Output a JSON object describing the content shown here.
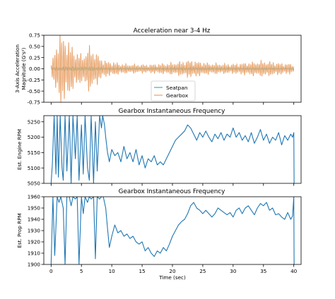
{
  "chart_data": [
    {
      "type": "line",
      "title": "Acceleration near 3-4 Hz",
      "ylabel": "3-Axis Acceleration\nMagnitude (G's²)",
      "xlim": [
        -1.2,
        41.2
      ],
      "ylim": [
        -0.75,
        0.75
      ],
      "yticks": [
        "0.75",
        "0.50",
        "0.25",
        "0.00",
        "-0.25",
        "-0.50",
        "-0.75"
      ],
      "ytick_values": [
        0.75,
        0.5,
        0.25,
        0.0,
        -0.25,
        -0.5,
        -0.75
      ],
      "legend": {
        "placement": "lower-center",
        "entries": [
          "Seatpan",
          "Gearbox"
        ]
      },
      "series": [
        {
          "name": "Seatpan",
          "color": "#3fb59f",
          "amplitude_profile": [
            [
              0,
              0.03
            ],
            [
              1,
              0.05
            ],
            [
              3,
              0.06
            ],
            [
              7,
              0.06
            ],
            [
              9,
              0.04
            ],
            [
              15,
              0.03
            ],
            [
              23,
              0.05
            ],
            [
              30,
              0.04
            ],
            [
              40,
              0.03
            ]
          ]
        },
        {
          "name": "Gearbox",
          "color": "#e8a066",
          "amplitude_profile": [
            [
              0,
              0.05
            ],
            [
              0.5,
              0.45
            ],
            [
              1.3,
              0.9
            ],
            [
              2.5,
              0.8
            ],
            [
              3.5,
              0.55
            ],
            [
              5,
              0.35
            ],
            [
              6.5,
              0.6
            ],
            [
              8,
              0.3
            ],
            [
              9,
              0.2
            ],
            [
              12,
              0.12
            ],
            [
              16,
              0.1
            ],
            [
              20,
              0.15
            ],
            [
              23,
              0.22
            ],
            [
              26,
              0.14
            ],
            [
              30,
              0.12
            ],
            [
              35,
              0.2
            ],
            [
              38,
              0.14
            ],
            [
              40,
              0.12
            ]
          ]
        }
      ]
    },
    {
      "type": "line",
      "title": "Gearbox Instantaneous Frequency",
      "ylabel": "Est. Engine RPM",
      "xlim": [
        -1.2,
        41.2
      ],
      "ylim": [
        5050,
        5270
      ],
      "yticks": [
        "5250",
        "5200",
        "5150",
        "5100",
        "5050"
      ],
      "ytick_values": [
        5250,
        5200,
        5150,
        5100,
        5050
      ],
      "series": [
        {
          "name": "",
          "color": "#1f77b4",
          "x": [
            0.0,
            0.2,
            0.5,
            0.8,
            1.0,
            1.2,
            1.5,
            1.8,
            2.0,
            2.3,
            2.6,
            3.0,
            3.3,
            3.6,
            4.0,
            4.3,
            4.6,
            5.0,
            5.3,
            5.6,
            6.0,
            6.3,
            6.6,
            7.0,
            7.3,
            7.6,
            8.0,
            8.3,
            8.5,
            8.8,
            9.0,
            9.3,
            9.6,
            10.0,
            10.5,
            11.0,
            11.5,
            12.0,
            12.5,
            13.0,
            13.5,
            14.0,
            14.5,
            15.0,
            15.5,
            16.0,
            16.5,
            17.0,
            17.5,
            18.0,
            18.5,
            19.0,
            19.5,
            20.0,
            20.5,
            21.0,
            21.5,
            22.0,
            22.5,
            23.0,
            23.5,
            24.0,
            24.5,
            25.0,
            25.5,
            26.0,
            26.5,
            27.0,
            27.5,
            28.0,
            28.5,
            29.0,
            29.5,
            30.0,
            30.5,
            31.0,
            31.5,
            32.0,
            32.5,
            33.0,
            33.5,
            34.0,
            34.5,
            35.0,
            35.5,
            36.0,
            36.5,
            37.0,
            37.5,
            38.0,
            38.5,
            39.0,
            39.5,
            39.8,
            40.0,
            40.05
          ],
          "values": [
            5050,
            5110,
            5270,
            5080,
            5270,
            5070,
            5270,
            5100,
            5060,
            5270,
            5090,
            5270,
            5050,
            5270,
            5130,
            5270,
            5060,
            5240,
            5080,
            5270,
            5100,
            5060,
            5270,
            5050,
            5250,
            5090,
            5270,
            5230,
            5270,
            5240,
            5200,
            5150,
            5120,
            5160,
            5140,
            5150,
            5120,
            5170,
            5130,
            5150,
            5120,
            5160,
            5110,
            5140,
            5100,
            5130,
            5120,
            5140,
            5110,
            5120,
            5110,
            5130,
            5150,
            5170,
            5190,
            5200,
            5210,
            5220,
            5240,
            5230,
            5210,
            5190,
            5215,
            5200,
            5220,
            5200,
            5185,
            5210,
            5195,
            5215,
            5190,
            5210,
            5200,
            5230,
            5200,
            5215,
            5190,
            5205,
            5185,
            5215,
            5180,
            5200,
            5225,
            5190,
            5210,
            5180,
            5200,
            5190,
            5215,
            5175,
            5205,
            5190,
            5210,
            5200,
            5215,
            5050
          ]
        }
      ]
    },
    {
      "type": "line",
      "title": "Gearbox Instantaneous Frequency",
      "ylabel": "Est. Prop RPM",
      "xlabel": "Time (sec)",
      "xlim": [
        -1.2,
        41.2
      ],
      "ylim": [
        1900,
        1960
      ],
      "xticks": [
        "0",
        "5",
        "10",
        "15",
        "20",
        "25",
        "30",
        "35",
        "40"
      ],
      "xtick_values": [
        0,
        5,
        10,
        15,
        20,
        25,
        30,
        35,
        40
      ],
      "yticks": [
        "1960",
        "1950",
        "1940",
        "1930",
        "1920",
        "1910",
        "1900"
      ],
      "ytick_values": [
        1960,
        1950,
        1940,
        1930,
        1920,
        1910,
        1900
      ],
      "series": [
        {
          "name": "",
          "color": "#1f77b4",
          "x": [
            0.0,
            0.3,
            0.6,
            1.0,
            1.3,
            1.6,
            2.0,
            2.3,
            2.6,
            3.0,
            3.3,
            3.6,
            4.0,
            4.3,
            4.6,
            5.0,
            5.3,
            5.6,
            6.0,
            6.3,
            6.6,
            7.0,
            7.3,
            7.6,
            8.0,
            8.3,
            8.6,
            9.0,
            9.3,
            9.6,
            10.0,
            10.5,
            11.0,
            11.5,
            12.0,
            12.5,
            13.0,
            13.5,
            14.0,
            14.5,
            15.0,
            15.5,
            16.0,
            16.5,
            17.0,
            17.5,
            18.0,
            18.5,
            19.0,
            19.5,
            20.0,
            20.5,
            21.0,
            21.5,
            22.0,
            22.5,
            23.0,
            23.5,
            24.0,
            24.5,
            25.0,
            25.5,
            26.0,
            26.5,
            27.0,
            27.5,
            28.0,
            28.5,
            29.0,
            29.5,
            30.0,
            30.5,
            31.0,
            31.5,
            32.0,
            32.5,
            33.0,
            33.5,
            34.0,
            34.5,
            35.0,
            35.5,
            36.0,
            36.5,
            37.0,
            37.5,
            38.0,
            38.5,
            39.0,
            39.5,
            39.8,
            40.0,
            40.05
          ],
          "values": [
            1900,
            1960,
            1908,
            1960,
            1955,
            1960,
            1950,
            1900,
            1960,
            1960,
            1952,
            1960,
            1958,
            1960,
            1900,
            1960,
            1945,
            1960,
            1955,
            1960,
            1958,
            1960,
            1905,
            1960,
            1958,
            1960,
            1960,
            1950,
            1932,
            1915,
            1925,
            1935,
            1928,
            1930,
            1925,
            1927,
            1923,
            1925,
            1920,
            1918,
            1920,
            1912,
            1915,
            1910,
            1907,
            1912,
            1910,
            1915,
            1912,
            1918,
            1925,
            1930,
            1935,
            1938,
            1940,
            1945,
            1952,
            1955,
            1950,
            1948,
            1945,
            1948,
            1945,
            1942,
            1945,
            1950,
            1948,
            1946,
            1944,
            1946,
            1942,
            1948,
            1950,
            1945,
            1950,
            1952,
            1948,
            1944,
            1950,
            1954,
            1952,
            1955,
            1948,
            1950,
            1944,
            1945,
            1942,
            1940,
            1946,
            1940,
            1943,
            1960,
            1900
          ]
        }
      ]
    }
  ]
}
